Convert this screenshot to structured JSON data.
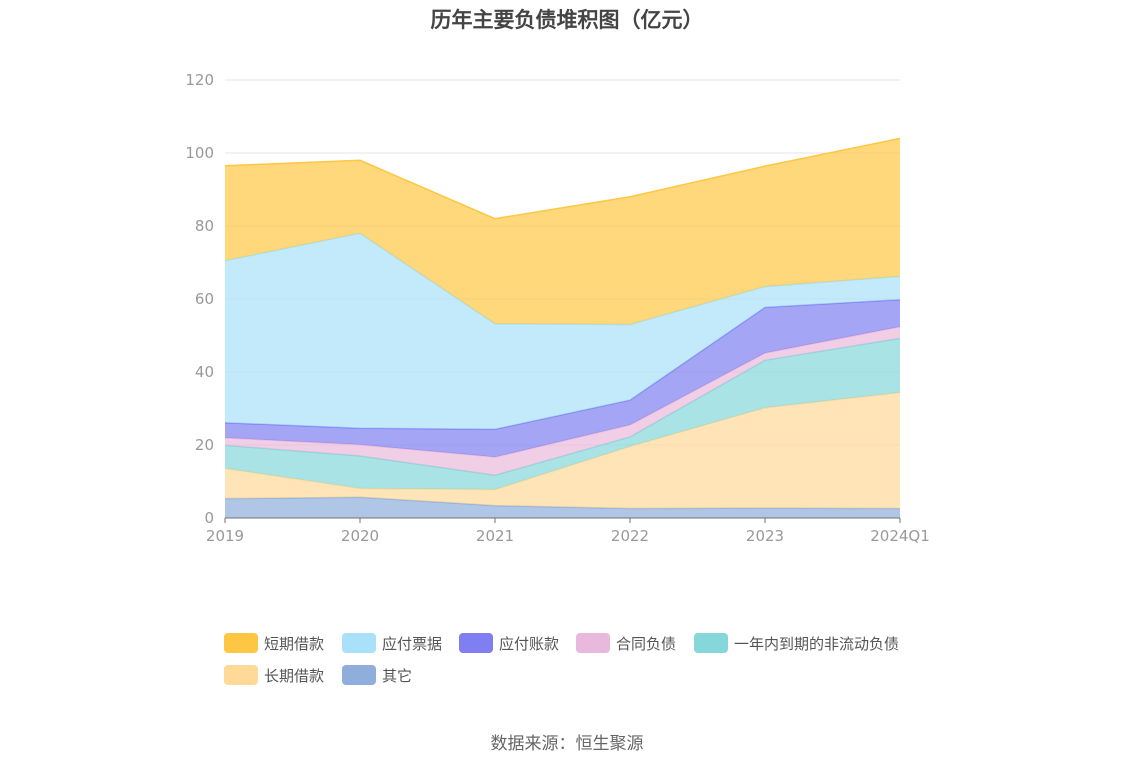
{
  "chart_data": {
    "type": "area",
    "stacked": true,
    "title": "历年主要负债堆积图（亿元）",
    "categories": [
      "2019",
      "2020",
      "2021",
      "2022",
      "2023",
      "2024Q1"
    ],
    "y_ticks": [
      "0",
      "20",
      "40",
      "60",
      "80",
      "100",
      "120"
    ],
    "ylim": [
      0,
      120
    ],
    "grid": true,
    "legend_position": "bottom",
    "series": [
      {
        "name": "其它",
        "color": "#8FAEDB",
        "values": [
          5.3,
          5.7,
          3.4,
          2.6,
          2.7,
          2.6
        ]
      },
      {
        "name": "长期借款",
        "color": "#FFD998",
        "values": [
          8.3,
          2.4,
          4.4,
          17.0,
          27.5,
          31.8
        ]
      },
      {
        "name": "一年内到期的非流动负债",
        "color": "#86D7DA",
        "values": [
          6.3,
          8.9,
          3.9,
          2.6,
          13.0,
          14.8
        ]
      },
      {
        "name": "合同负债",
        "color": "#E8B9DC",
        "values": [
          2.1,
          3.1,
          5.0,
          3.3,
          2.0,
          3.2
        ]
      },
      {
        "name": "应付账款",
        "color": "#7F7FF2",
        "values": [
          4.1,
          4.5,
          7.6,
          6.8,
          12.5,
          7.4
        ]
      },
      {
        "name": "应付票据",
        "color": "#A9E1FA",
        "values": [
          44.4,
          53.4,
          28.9,
          20.7,
          5.7,
          6.4
        ]
      },
      {
        "name": "短期借款",
        "color": "#FDC743",
        "values": [
          26.0,
          20.0,
          28.8,
          35.0,
          33.0,
          37.8
        ]
      }
    ],
    "legend_order": [
      "短期借款",
      "应付票据",
      "应付账款",
      "合同负债",
      "一年内到期的非流动负债",
      "长期借款",
      "其它"
    ]
  },
  "source": "数据来源：恒生聚源"
}
